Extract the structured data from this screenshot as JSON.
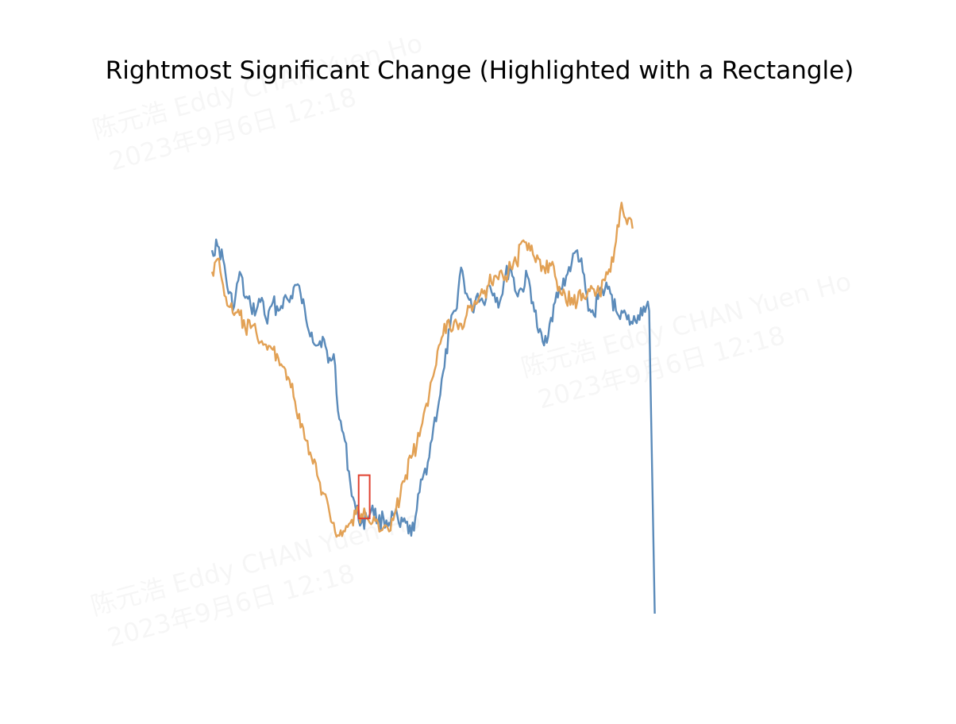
{
  "chart_data": {
    "type": "line",
    "title": "Rightmost Significant Change (Highlighted with a Rectangle)",
    "xlabel": "",
    "ylabel": "",
    "axes_visible": false,
    "grid": false,
    "xlim": [
      0,
      100
    ],
    "ylim": [
      0,
      100
    ],
    "series": [
      {
        "color": "#5b8bba",
        "points": [
          [
            0,
            84
          ],
          [
            1,
            85
          ],
          [
            2,
            82
          ],
          [
            3,
            74
          ],
          [
            4,
            71
          ],
          [
            5,
            79
          ],
          [
            6,
            73
          ],
          [
            7,
            71
          ],
          [
            8,
            70
          ],
          [
            9,
            73
          ],
          [
            10,
            67
          ],
          [
            11,
            72
          ],
          [
            12,
            70
          ],
          [
            13,
            73
          ],
          [
            14,
            72
          ],
          [
            15,
            76
          ],
          [
            16,
            74
          ],
          [
            17,
            68
          ],
          [
            18,
            65
          ],
          [
            19,
            62
          ],
          [
            20,
            64
          ],
          [
            21,
            58
          ],
          [
            22,
            60
          ],
          [
            23,
            45
          ],
          [
            24,
            40
          ],
          [
            25,
            30
          ],
          [
            26,
            24
          ],
          [
            27,
            21
          ],
          [
            28,
            22
          ],
          [
            29,
            25
          ],
          [
            30,
            21
          ],
          [
            31,
            22
          ],
          [
            32,
            21
          ],
          [
            33,
            23
          ],
          [
            34,
            20
          ],
          [
            35,
            21
          ],
          [
            36,
            18
          ],
          [
            37,
            24
          ],
          [
            38,
            31
          ],
          [
            39,
            35
          ],
          [
            40,
            43
          ],
          [
            41,
            49
          ],
          [
            42,
            57
          ],
          [
            43,
            66
          ],
          [
            44,
            70
          ],
          [
            45,
            80
          ],
          [
            46,
            74
          ],
          [
            47,
            70
          ],
          [
            48,
            74
          ],
          [
            49,
            72
          ],
          [
            50,
            76
          ],
          [
            51,
            74
          ],
          [
            52,
            72
          ],
          [
            53,
            78
          ],
          [
            54,
            80
          ],
          [
            55,
            74
          ],
          [
            56,
            75
          ],
          [
            57,
            78
          ],
          [
            58,
            72
          ],
          [
            59,
            65
          ],
          [
            60,
            62
          ],
          [
            61,
            67
          ],
          [
            62,
            72
          ],
          [
            63,
            75
          ],
          [
            64,
            78
          ],
          [
            65,
            81
          ],
          [
            66,
            84
          ],
          [
            67,
            79
          ],
          [
            68,
            70
          ],
          [
            69,
            69
          ],
          [
            70,
            75
          ],
          [
            71,
            75
          ],
          [
            72,
            74
          ],
          [
            73,
            70
          ],
          [
            74,
            70
          ],
          [
            75,
            68
          ],
          [
            76,
            67
          ],
          [
            77,
            69
          ],
          [
            78,
            71
          ],
          [
            79,
            70
          ],
          [
            80,
            0
          ]
        ]
      },
      {
        "color": "#e2a155",
        "points": [
          [
            0,
            79
          ],
          [
            1,
            82
          ],
          [
            2,
            76
          ],
          [
            3,
            71
          ],
          [
            4,
            69
          ],
          [
            5,
            69
          ],
          [
            6,
            66
          ],
          [
            7,
            66
          ],
          [
            8,
            65
          ],
          [
            9,
            63
          ],
          [
            10,
            61
          ],
          [
            11,
            61
          ],
          [
            12,
            59
          ],
          [
            13,
            57
          ],
          [
            14,
            54
          ],
          [
            15,
            49
          ],
          [
            16,
            43
          ],
          [
            17,
            40
          ],
          [
            18,
            36
          ],
          [
            19,
            32
          ],
          [
            20,
            28
          ],
          [
            21,
            25
          ],
          [
            22,
            21
          ],
          [
            23,
            18
          ],
          [
            24,
            19
          ],
          [
            25,
            21
          ],
          [
            26,
            23
          ],
          [
            27,
            23
          ],
          [
            28,
            22
          ],
          [
            29,
            21
          ],
          [
            30,
            21
          ],
          [
            31,
            20
          ],
          [
            32,
            19
          ],
          [
            33,
            23
          ],
          [
            34,
            27
          ],
          [
            35,
            32
          ],
          [
            36,
            36
          ],
          [
            37,
            39
          ],
          [
            38,
            44
          ],
          [
            39,
            48
          ],
          [
            40,
            55
          ],
          [
            41,
            62
          ],
          [
            42,
            67
          ],
          [
            43,
            66
          ],
          [
            44,
            68
          ],
          [
            45,
            67
          ],
          [
            46,
            69
          ],
          [
            47,
            70
          ],
          [
            48,
            72
          ],
          [
            49,
            74
          ],
          [
            50,
            76
          ],
          [
            51,
            78
          ],
          [
            52,
            79
          ],
          [
            53,
            78
          ],
          [
            54,
            80
          ],
          [
            55,
            81
          ],
          [
            56,
            86
          ],
          [
            57,
            84
          ],
          [
            58,
            83
          ],
          [
            59,
            82
          ],
          [
            60,
            80
          ],
          [
            61,
            81
          ],
          [
            62,
            78
          ],
          [
            63,
            74
          ],
          [
            64,
            72
          ],
          [
            65,
            73
          ],
          [
            66,
            72
          ],
          [
            67,
            74
          ],
          [
            68,
            75
          ],
          [
            69,
            75
          ],
          [
            70,
            74
          ],
          [
            71,
            77
          ],
          [
            72,
            79
          ],
          [
            73,
            86
          ],
          [
            74,
            95
          ],
          [
            75,
            90
          ],
          [
            76,
            89
          ]
        ]
      }
    ],
    "highlight_rect": {
      "x0": 26.5,
      "x1": 28.5,
      "y0": 22,
      "y1": 32,
      "color": "#e0402f"
    }
  },
  "watermark": {
    "line1": "陈元浩 Eddy CHAN Yuen Ho",
    "line2": "2023年9月6日 12:18"
  }
}
